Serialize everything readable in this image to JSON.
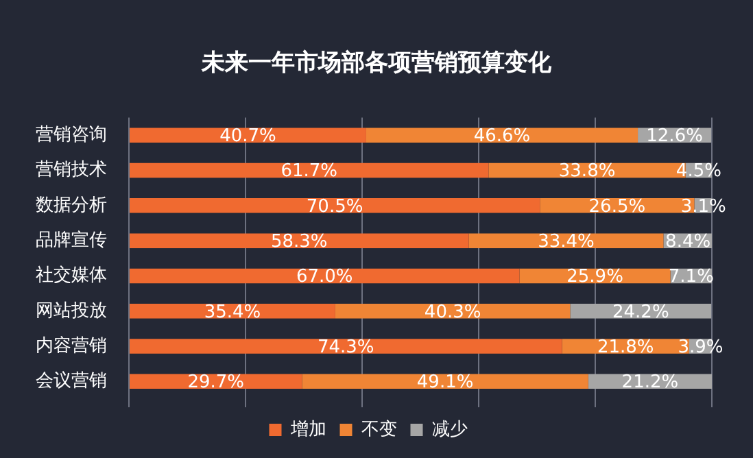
{
  "chart_data": {
    "type": "bar",
    "orientation": "horizontal",
    "stacked": true,
    "title": "未来一年市场部各项营销预算变化",
    "categories": [
      "营销咨询",
      "营销技术",
      "数据分析",
      "品牌宣传",
      "社交媒体",
      "网站投放",
      "内容营销",
      "会议营销"
    ],
    "series": [
      {
        "name": "增加",
        "color": "#f06a30",
        "values": [
          40.7,
          61.7,
          70.5,
          58.3,
          67.0,
          35.4,
          74.3,
          29.7
        ],
        "value_labels": [
          "40.7%",
          "61.7%",
          "70.5%",
          "58.3%",
          "67.0%",
          "35.4%",
          "74.3%",
          "29.7%"
        ]
      },
      {
        "name": "不变",
        "color": "#f08535",
        "values": [
          46.6,
          33.8,
          26.5,
          33.4,
          25.9,
          40.3,
          21.8,
          49.1
        ],
        "value_labels": [
          "46.6%",
          "33.8%",
          "26.5%",
          "33.4%",
          "25.9%",
          "40.3%",
          "21.8%",
          "49.1%"
        ]
      },
      {
        "name": "减少",
        "color": "#a6a6a6",
        "values": [
          12.6,
          4.5,
          3.1,
          8.4,
          7.1,
          24.2,
          3.9,
          21.2
        ],
        "value_labels": [
          "12.6%",
          "4.5%",
          "3.1%",
          "8.4%",
          "7.1%",
          "24.2%",
          "3.9%",
          "21.2%"
        ]
      }
    ],
    "xlim": [
      0,
      100
    ],
    "xticks": [
      {
        "value": 0,
        "label": null
      },
      {
        "value": 20,
        "label": null
      },
      {
        "value": 40,
        "label": null
      },
      {
        "value": 60,
        "label": null
      },
      {
        "value": 80,
        "label": null
      },
      {
        "value": 100,
        "label": null
      }
    ],
    "tick_labels": "y",
    "grid": "x",
    "legend": "bottom"
  }
}
